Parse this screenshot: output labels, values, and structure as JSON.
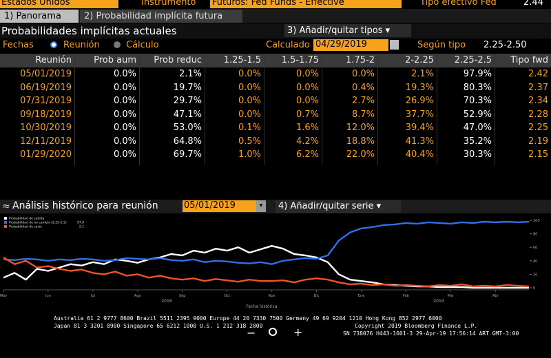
{
  "top_bar": {
    "country": "Estados Unidos",
    "instrument_label": "Instrumento",
    "instrument": "Futuros: Fed Funds - Effective",
    "rate_label": "Tipo efectivo Fed",
    "rate": "2.44"
  },
  "tabs": [
    "1) Panorama",
    "2) Probabilidad implícita futura"
  ],
  "section": {
    "title": "Probabilidades implícitas actuales",
    "add_remove": "3) Añadir/quitar tipos"
  },
  "controls": {
    "dates_label": "Fechas",
    "option_meeting": "Reunión",
    "option_calc": "Cálculo",
    "calculated_label": "Calculado",
    "calculated_date": "04/29/2019",
    "by_rate_label": "Según tipo",
    "by_rate": "2.25-2.50"
  },
  "table": {
    "header": [
      "Reunión",
      "Prob aum",
      "Prob reduc",
      "1.25-1.5",
      "1.5-1.75",
      "1.75-2",
      "2-2.25",
      "2.25-2.5",
      "Tipo fwd"
    ],
    "rows": [
      [
        "05/01/2019",
        "0.0%",
        "2.1%",
        "0.0%",
        "0.0%",
        "0.0%",
        "2.1%",
        "97.9%",
        "2.42"
      ],
      [
        "06/19/2019",
        "0.0%",
        "19.7%",
        "0.0%",
        "0.0%",
        "0.4%",
        "19.3%",
        "80.3%",
        "2.37"
      ],
      [
        "07/31/2019",
        "0.0%",
        "29.7%",
        "0.0%",
        "0.0%",
        "2.7%",
        "26.9%",
        "70.3%",
        "2.34"
      ],
      [
        "09/18/2019",
        "0.0%",
        "47.1%",
        "0.0%",
        "0.7%",
        "8.7%",
        "37.7%",
        "52.9%",
        "2.28"
      ],
      [
        "10/30/2019",
        "0.0%",
        "53.0%",
        "0.1%",
        "1.6%",
        "12.0%",
        "39.4%",
        "47.0%",
        "2.25"
      ],
      [
        "12/11/2019",
        "0.0%",
        "64.8%",
        "0.5%",
        "4.2%",
        "18.8%",
        "41.3%",
        "35.2%",
        "2.19"
      ],
      [
        "01/29/2020",
        "0.0%",
        "69.7%",
        "1.0%",
        "6.2%",
        "22.0%",
        "40.4%",
        "30.3%",
        "2.15"
      ]
    ]
  },
  "history": {
    "title": "Análisis histórico para reunión",
    "meeting": "05/01/2019",
    "add_remove": "4) Añadir/quitar serie"
  },
  "chart_data": {
    "type": "line",
    "x_label": "Fecha histórica",
    "year_labels": [
      "2018",
      "2019"
    ],
    "categories": [
      "May",
      null,
      null,
      null,
      "Jun",
      null,
      null,
      null,
      "Jul",
      null,
      null,
      null,
      "Ago",
      null,
      null,
      null,
      "Sep",
      null,
      null,
      null,
      "Oct",
      null,
      null,
      null,
      "Nov",
      null,
      null,
      null,
      "Dic",
      null,
      null,
      null,
      "Ene",
      null,
      null,
      null,
      "Feb",
      null,
      null,
      null,
      "Mar",
      null,
      null,
      null,
      "Abr",
      null,
      null,
      null
    ],
    "series": [
      {
        "name": "Probabilidad de subida",
        "color": "#ffffff",
        "values": [
          15,
          22,
          12,
          28,
          25,
          30,
          35,
          33,
          38,
          35,
          42,
          40,
          37,
          42,
          45,
          50,
          48,
          55,
          52,
          58,
          55,
          60,
          52,
          57,
          62,
          58,
          50,
          48,
          45,
          38,
          20,
          12,
          10,
          8,
          5,
          4,
          3,
          2,
          2,
          1,
          1,
          1,
          0,
          0,
          0,
          0,
          0,
          0
        ]
      },
      {
        "name": "Probabilidad de no cambio (2.25-2.5)",
        "color": "#2f6fe8",
        "show_last": true,
        "values": [
          42,
          41,
          43,
          42,
          40,
          42,
          41,
          43,
          42,
          40,
          41,
          44,
          43,
          42,
          44,
          41,
          40,
          42,
          38,
          40,
          39,
          37,
          36,
          38,
          35,
          40,
          42,
          44,
          43,
          48,
          70,
          82,
          88,
          90,
          93,
          94,
          96,
          95,
          97,
          96,
          95,
          97,
          96,
          98,
          97,
          98,
          97,
          97.9
        ]
      },
      {
        "name": "Probabilidad de corte",
        "color": "#f0522a",
        "show_last": true,
        "values": [
          45,
          35,
          40,
          30,
          32,
          28,
          25,
          27,
          22,
          20,
          24,
          18,
          20,
          15,
          18,
          14,
          12,
          14,
          10,
          13,
          11,
          9,
          12,
          10,
          10,
          11,
          8,
          12,
          14,
          12,
          8,
          5,
          6,
          4,
          5,
          3,
          4,
          3,
          2,
          4,
          3,
          5,
          2,
          3,
          2,
          4,
          3,
          2.1
        ]
      }
    ],
    "ylim": [
      0,
      100
    ],
    "yticks": [
      0,
      20,
      40,
      60,
      80,
      100
    ],
    "grid": false
  },
  "footer": {
    "lines": [
      "Australia 61 2 9777 8600 Brazil 5511 2395 9000 Europe 44 20 7330 7500 Germany 49 69 9204 1210 Hong Kong 852 2977 6000",
      "Japan 81 3 3201 8900 Singapore 65 6212 1000 U.S. 1 212 318 2000"
    ],
    "copyright": "Copyright 2019 Bloomberg Finance L.P.",
    "session": "SN 738076 H443-1601-3 29-Apr-19 17:56:14 ART GMT-3:00"
  }
}
